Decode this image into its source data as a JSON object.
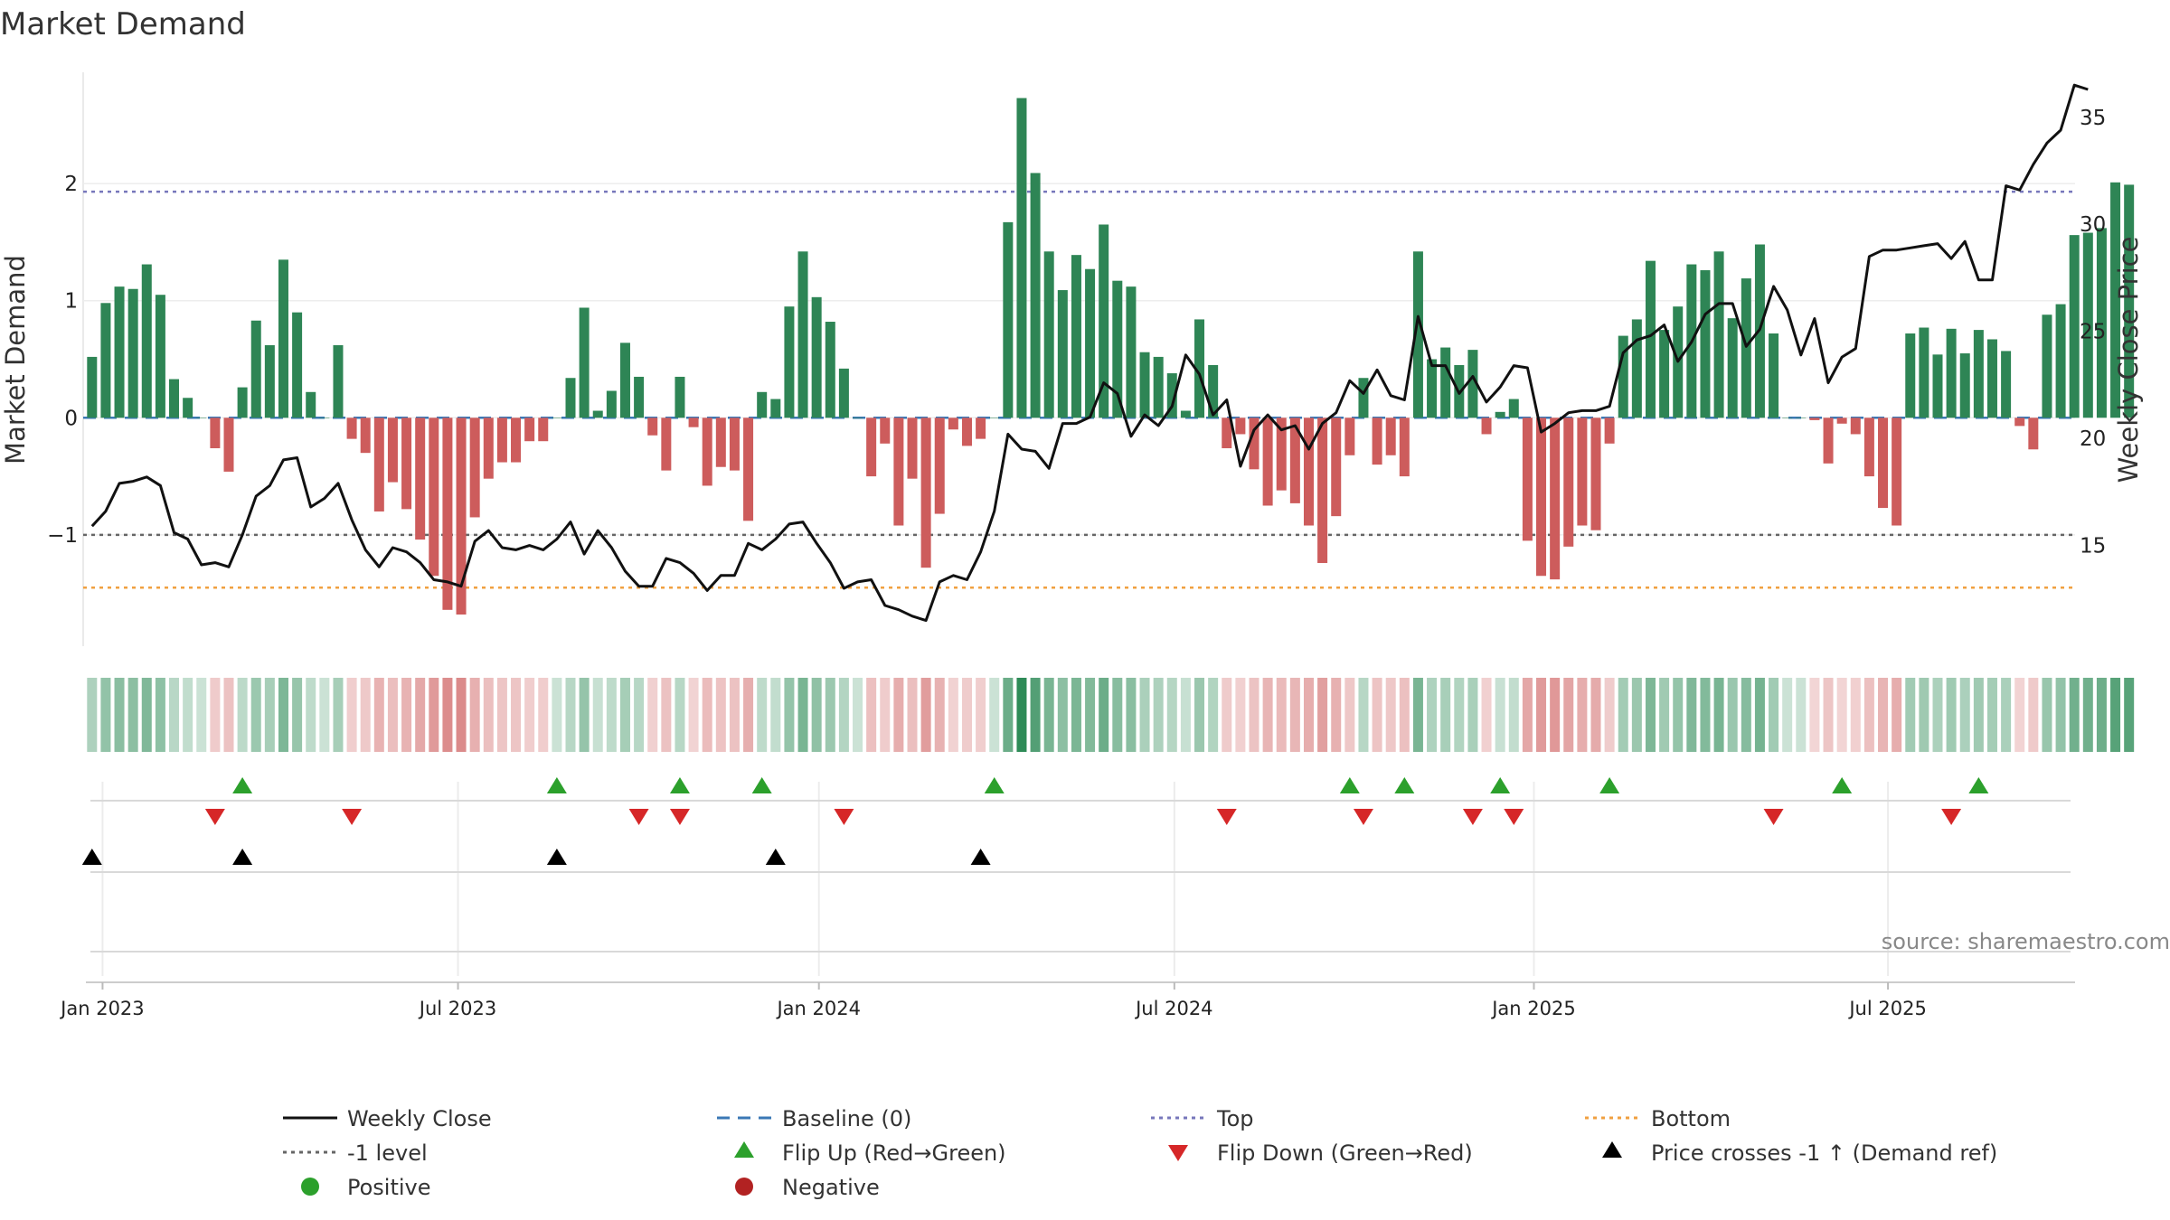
{
  "chart_data": {
    "type": "bar",
    "title": "Market Demand",
    "ylabel": "Market Demand",
    "y2label": "Weekly Close Price",
    "ylim": [
      -1.95,
      2.95
    ],
    "y2lim": [
      10.3,
      37.1
    ],
    "yticks": [
      -1,
      0,
      1,
      2
    ],
    "ytick_labels": [
      "−1",
      "0",
      "1",
      "2"
    ],
    "y2ticks": [
      15,
      20,
      25,
      30,
      35
    ],
    "y2tick_labels": [
      "15",
      "20",
      "25",
      "30",
      "35"
    ],
    "x_start": "2022-12-26",
    "x_step": "1 week",
    "x_ticks": [
      {
        "label": "Jan 2023",
        "week": 1
      },
      {
        "label": "Jul 2023",
        "week": 27
      },
      {
        "label": "Jan 2024",
        "week": 53.4
      },
      {
        "label": "Jul 2024",
        "week": 79.4
      },
      {
        "label": "Jan 2025",
        "week": 105.7
      },
      {
        "label": "Jul 2025",
        "week": 131.6
      }
    ],
    "reference_lines": {
      "baseline": 0,
      "top": 1.93,
      "minus_one": -1,
      "bottom": -1.45
    },
    "colors": {
      "positive": "#2e8555",
      "negative": "#cd5c5c",
      "close": "#111111",
      "baseline": "#3b78b5",
      "top": "#7777bb",
      "minus_one": "#666666",
      "bottom": "#f0a040",
      "flip_up": "#2ca02c",
      "flip_down": "#d62728",
      "cross": "#000000",
      "legend_positive": "#2ca02c",
      "legend_negative": "#b22222"
    },
    "demand": [
      0.52,
      0.98,
      1.12,
      1.1,
      1.31,
      1.05,
      0.33,
      0.17,
      0,
      -0.26,
      -0.46,
      0.26,
      0.83,
      0.62,
      1.35,
      0.9,
      0.22,
      0,
      0.62,
      -0.18,
      -0.3,
      -0.8,
      -0.55,
      -0.78,
      -1.04,
      -1.35,
      -1.64,
      -1.68,
      -0.85,
      -0.52,
      -0.38,
      -0.38,
      -0.2,
      -0.2,
      0,
      0.34,
      0.94,
      0.06,
      0.23,
      0.64,
      0.35,
      -0.15,
      -0.45,
      0.35,
      -0.08,
      -0.58,
      -0.42,
      -0.45,
      -0.88,
      0.22,
      0.16,
      0.95,
      1.42,
      1.03,
      0.82,
      0.42,
      0,
      -0.5,
      -0.22,
      -0.92,
      -0.52,
      -1.28,
      -0.82,
      -0.1,
      -0.24,
      -0.18,
      0,
      1.67,
      2.73,
      2.09,
      1.42,
      1.09,
      1.39,
      1.27,
      1.65,
      1.17,
      1.12,
      0.56,
      0.52,
      0.38,
      0.06,
      0.84,
      0.45,
      -0.26,
      -0.14,
      -0.44,
      -0.75,
      -0.62,
      -0.73,
      -0.92,
      -1.24,
      -0.84,
      -0.32,
      0.34,
      -0.4,
      -0.32,
      -0.5,
      1.42,
      0.5,
      0.6,
      0.45,
      0.58,
      -0.14,
      0.05,
      0.16,
      -1.05,
      -1.35,
      -1.38,
      -1.1,
      -0.92,
      -0.96,
      -0.22,
      0.7,
      0.84,
      1.34,
      0.75,
      0.95,
      1.31,
      1.26,
      1.42,
      0.85,
      1.19,
      1.48,
      0.72,
      0,
      0,
      -0.02,
      -0.39,
      -0.05,
      -0.14,
      -0.5,
      -0.77,
      -0.92,
      0.72,
      0.77,
      0.54,
      0.76,
      0.55,
      0.75,
      0.67,
      0.57,
      -0.07,
      -0.27,
      0.88,
      0.97,
      1.56,
      1.58,
      1.62,
      2.01,
      1.99
    ],
    "close": [
      15.9,
      16.6,
      17.9,
      18.0,
      18.2,
      17.8,
      15.6,
      15.3,
      14.1,
      14.2,
      14.0,
      15.5,
      17.3,
      17.8,
      19.0,
      19.1,
      16.8,
      17.2,
      17.9,
      16.2,
      14.8,
      14.0,
      14.9,
      14.7,
      14.2,
      13.4,
      13.3,
      13.1,
      15.2,
      15.7,
      14.9,
      14.8,
      15.0,
      14.8,
      15.3,
      16.1,
      14.6,
      15.7,
      14.9,
      13.8,
      13.1,
      13.1,
      14.4,
      14.2,
      13.7,
      12.9,
      13.6,
      13.6,
      15.1,
      14.8,
      15.3,
      16.0,
      16.1,
      15.1,
      14.2,
      13.0,
      13.3,
      13.4,
      12.2,
      12.0,
      11.7,
      11.5,
      13.3,
      13.6,
      13.4,
      14.7,
      16.6,
      20.2,
      19.5,
      19.4,
      18.6,
      20.7,
      20.7,
      21.0,
      22.6,
      22.1,
      20.1,
      21.1,
      20.6,
      21.5,
      23.9,
      23.0,
      21.1,
      21.8,
      18.7,
      20.4,
      21.1,
      20.4,
      20.6,
      19.5,
      20.7,
      21.2,
      22.7,
      22.1,
      23.2,
      22.0,
      21.8,
      25.7,
      23.4,
      23.4,
      22.1,
      22.9,
      21.7,
      22.4,
      23.4,
      23.3,
      20.3,
      20.7,
      21.2,
      21.3,
      21.3,
      21.5,
      24.0,
      24.6,
      24.8,
      25.3,
      23.6,
      24.5,
      25.8,
      26.3,
      26.3,
      24.3,
      25.1,
      27.1,
      26.0,
      23.9,
      25.6,
      22.6,
      23.8,
      24.2,
      28.5,
      28.8,
      28.8,
      28.9,
      29.0,
      29.1,
      28.4,
      29.2,
      27.4,
      27.4,
      31.8,
      31.6,
      32.8,
      33.8,
      34.4,
      36.5,
      36.3
    ],
    "flip_up": [
      11,
      34,
      43,
      49,
      66,
      92,
      96,
      103,
      111,
      128,
      138
    ],
    "flip_down": [
      9,
      19,
      40,
      43,
      55,
      83,
      93,
      101,
      104,
      123,
      136
    ],
    "cross_up": [
      0,
      11,
      34,
      50,
      65
    ],
    "legend": [
      {
        "label": "Weekly Close",
        "marker": "line"
      },
      {
        "label": "Baseline (0)",
        "marker": "dash-line"
      },
      {
        "label": "Top",
        "marker": "dot-line"
      },
      {
        "label": "Bottom",
        "marker": "dot-line-orange"
      },
      {
        "label": "-1 level",
        "marker": "dot-line-gray"
      },
      {
        "label": "Flip Up (Red→Green)",
        "marker": "triangle-up-green"
      },
      {
        "label": "Flip Down (Green→Red)",
        "marker": "triangle-down-red"
      },
      {
        "label": "Price crosses -1 ↑ (Demand ref)",
        "marker": "triangle-up-black"
      },
      {
        "label": "Positive",
        "marker": "circle-green"
      },
      {
        "label": "Negative",
        "marker": "circle-red"
      }
    ],
    "annotation": "source: sharemaestro.com"
  }
}
